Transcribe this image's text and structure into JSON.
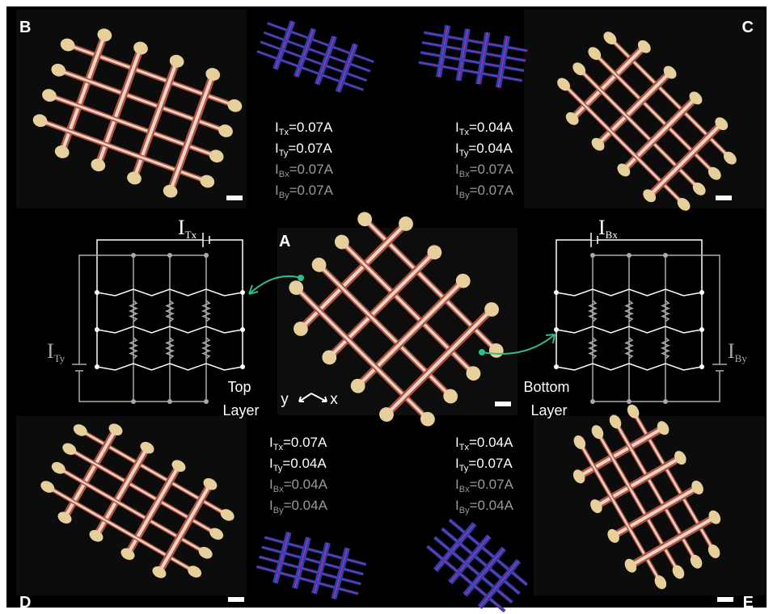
{
  "panels": {
    "a": "A",
    "b": "B",
    "c": "C",
    "d": "D",
    "e": "E"
  },
  "current_sets": [
    [
      {
        "symbol": "I",
        "sub": "Tx",
        "value": "=0.07A"
      },
      {
        "symbol": "I",
        "sub": "Ty",
        "value": "=0.07A"
      },
      {
        "symbol": "I",
        "sub": "Bx",
        "value": "=0.07A"
      },
      {
        "symbol": "I",
        "sub": "By",
        "value": "=0.07A"
      }
    ],
    [
      {
        "symbol": "I",
        "sub": "Tx",
        "value": "=0.04A"
      },
      {
        "symbol": "I",
        "sub": "Ty",
        "value": "=0.04A"
      },
      {
        "symbol": "I",
        "sub": "Bx",
        "value": "=0.07A"
      },
      {
        "symbol": "I",
        "sub": "By",
        "value": "=0.07A"
      }
    ],
    [
      {
        "symbol": "I",
        "sub": "Tx",
        "value": "=0.07A"
      },
      {
        "symbol": "I",
        "sub": "Ty",
        "value": "=0.04A"
      },
      {
        "symbol": "I",
        "sub": "Bx",
        "value": "=0.04A"
      },
      {
        "symbol": "I",
        "sub": "By",
        "value": "=0.04A"
      }
    ],
    [
      {
        "symbol": "I",
        "sub": "Tx",
        "value": "=0.04A"
      },
      {
        "symbol": "I",
        "sub": "Ty",
        "value": "=0.07A"
      },
      {
        "symbol": "I",
        "sub": "Bx",
        "value": "=0.07A"
      },
      {
        "symbol": "I",
        "sub": "By",
        "value": "=0.04A"
      }
    ]
  ],
  "circuits": {
    "top": {
      "x_source": {
        "symbol": "I",
        "sub": "Tx"
      },
      "y_source": {
        "symbol": "I",
        "sub": "Ty"
      },
      "label": [
        "Top",
        "Layer"
      ]
    },
    "bottom": {
      "x_source": {
        "symbol": "I",
        "sub": "Bx"
      },
      "y_source": {
        "symbol": "I",
        "sub": "By"
      },
      "label": [
        "Bottom",
        "Layer"
      ]
    }
  },
  "axes": {
    "y": "y",
    "x": "x"
  }
}
